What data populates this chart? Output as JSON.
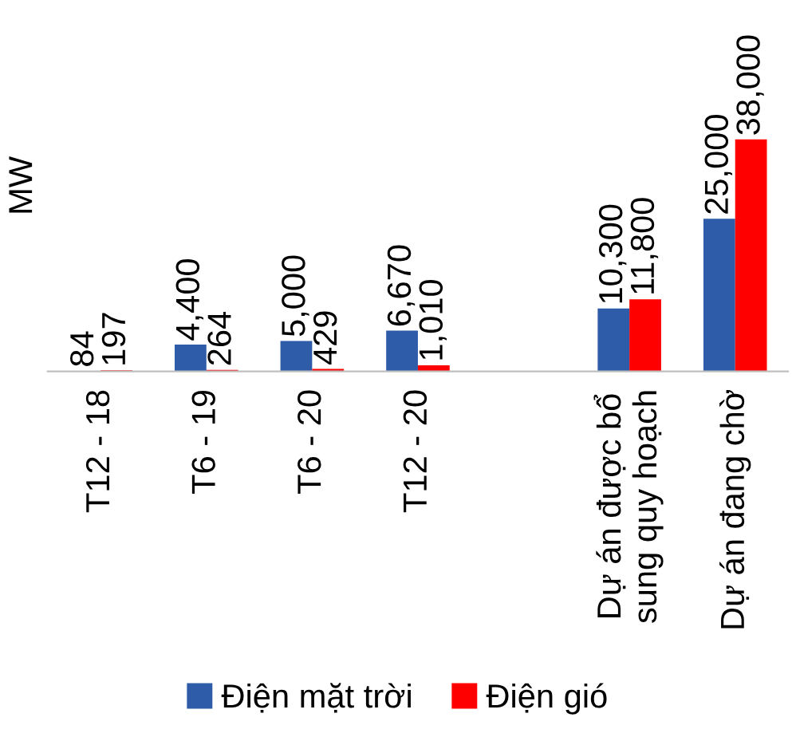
{
  "chart_data": {
    "type": "bar",
    "ylabel": "MW",
    "categories": [
      "T12 - 18",
      "T6 - 19",
      "T6 - 20",
      "T12 - 20",
      null,
      "Dự án được bổ\nsung quy hoạch",
      "Dự án đang chờ"
    ],
    "series": [
      {
        "name": "Điện mặt trời",
        "color": "#2e5ca8",
        "values": [
          84,
          4400,
          5000,
          6670,
          null,
          10300,
          25000
        ],
        "value_labels": [
          "84",
          "4,400",
          "5,000",
          "6,670",
          null,
          "10,300",
          "25,000"
        ]
      },
      {
        "name": "Điện gió",
        "color": "#ff0000",
        "values": [
          197,
          264,
          429,
          1010,
          null,
          11800,
          38000
        ],
        "value_labels": [
          "197",
          "264",
          "429",
          "1,010",
          null,
          "11,800",
          "38,000"
        ]
      }
    ],
    "legend": "bottom",
    "grid": false
  }
}
